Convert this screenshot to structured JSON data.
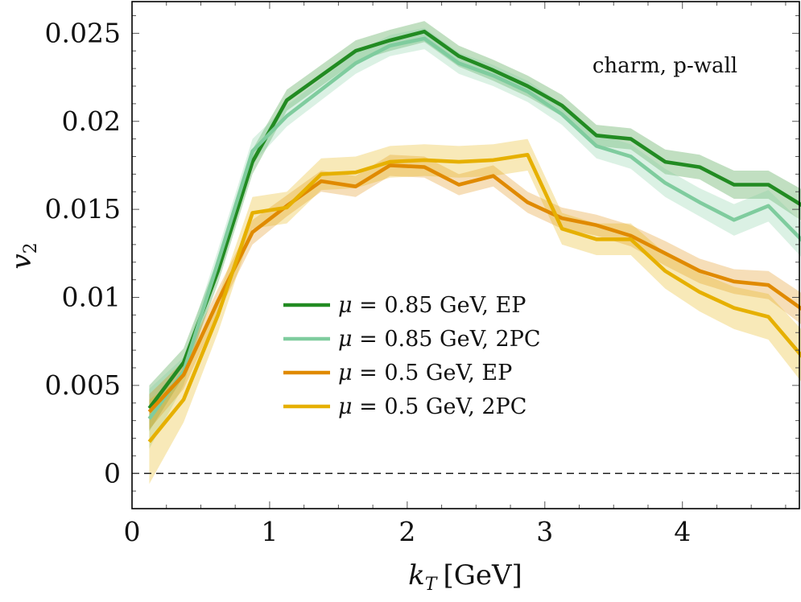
{
  "chart_data": {
    "type": "line",
    "annotation": "charm, p-wall",
    "xlabel": "k_T [GeV]",
    "xlabel_parts": {
      "symbol": "k",
      "subscript": "T",
      "unit": "[GeV]"
    },
    "ylabel": "v_2",
    "ylabel_parts": {
      "symbol": "v",
      "subscript": "2"
    },
    "xlim": [
      0,
      4.85
    ],
    "ylim": [
      -0.002,
      0.0268
    ],
    "x_ticks": [
      0,
      1,
      2,
      3,
      4
    ],
    "x_tick_labels": [
      "0",
      "1",
      "2",
      "3",
      "4"
    ],
    "y_ticks": [
      0,
      0.005,
      0.01,
      0.015,
      0.02,
      0.025
    ],
    "y_tick_labels": [
      "0",
      "0.005",
      "0.01",
      "0.015",
      "0.02",
      "0.025"
    ],
    "reference_line": {
      "y": 0,
      "style": "dashed"
    },
    "grid": false,
    "legend_placement": "center",
    "x": [
      0.125,
      0.375,
      0.625,
      0.875,
      1.125,
      1.375,
      1.625,
      1.875,
      2.125,
      2.375,
      2.625,
      2.875,
      3.125,
      3.375,
      3.625,
      3.875,
      4.125,
      4.375,
      4.625,
      4.875
    ],
    "series": [
      {
        "name": "μ = 0.85 GeV, EP",
        "legend_parts": {
          "symbol": "μ",
          "rest": " = 0.85 GeV, EP"
        },
        "color": "#228B22",
        "band_color": "#228B22",
        "values": [
          0.0037,
          0.0063,
          0.0115,
          0.0177,
          0.0212,
          0.0226,
          0.024,
          0.0246,
          0.0251,
          0.0237,
          0.0229,
          0.022,
          0.0209,
          0.0192,
          0.019,
          0.0177,
          0.0174,
          0.0164,
          0.0164,
          0.0152
        ],
        "band": [
          0.0013,
          0.0008,
          0.0007,
          0.0007,
          0.0006,
          0.0006,
          0.0006,
          0.0006,
          0.0006,
          0.0006,
          0.0006,
          0.0006,
          0.0006,
          0.0006,
          0.0006,
          0.0007,
          0.0007,
          0.0008,
          0.0008,
          0.0009
        ]
      },
      {
        "name": "μ = 0.85 GeV, 2PC",
        "legend_parts": {
          "symbol": "μ",
          "rest": " = 0.85 GeV, 2PC"
        },
        "color": "#7FCC9E",
        "band_color": "#7FCC9E",
        "values": [
          0.0031,
          0.0058,
          0.012,
          0.0183,
          0.0203,
          0.0218,
          0.0233,
          0.0243,
          0.0247,
          0.0233,
          0.0226,
          0.0217,
          0.0204,
          0.0186,
          0.018,
          0.0165,
          0.0154,
          0.0144,
          0.0152,
          0.0132
        ],
        "band": [
          0.0017,
          0.0008,
          0.0007,
          0.0007,
          0.0006,
          0.0006,
          0.0006,
          0.0006,
          0.0006,
          0.0006,
          0.0006,
          0.0006,
          0.0006,
          0.0007,
          0.0007,
          0.0008,
          0.0008,
          0.0009,
          0.0009,
          0.001
        ]
      },
      {
        "name": "μ = 0.5 GeV, EP",
        "legend_parts": {
          "symbol": "μ",
          "rest": " = 0.5 GeV, EP"
        },
        "color": "#E08A00",
        "band_color": "#E08A00",
        "values": [
          0.0035,
          0.0056,
          0.0098,
          0.0137,
          0.0152,
          0.0166,
          0.0163,
          0.0175,
          0.0174,
          0.0164,
          0.0169,
          0.0154,
          0.0145,
          0.0141,
          0.0135,
          0.0125,
          0.0115,
          0.0109,
          0.0107,
          0.0093
        ],
        "band": [
          0.001,
          0.0008,
          0.0007,
          0.0007,
          0.0006,
          0.0006,
          0.0006,
          0.0006,
          0.0006,
          0.0006,
          0.0006,
          0.0006,
          0.0006,
          0.0006,
          0.0006,
          0.0007,
          0.0007,
          0.0007,
          0.0008,
          0.0009
        ]
      },
      {
        "name": "μ = 0.5 GeV, 2PC",
        "legend_parts": {
          "symbol": "μ",
          "rest": " = 0.5 GeV, 2PC"
        },
        "color": "#E6B000",
        "band_color": "#E6B000",
        "values": [
          0.0018,
          0.0042,
          0.009,
          0.0148,
          0.0151,
          0.017,
          0.0171,
          0.0177,
          0.0178,
          0.0177,
          0.0178,
          0.0181,
          0.0139,
          0.0133,
          0.0133,
          0.0115,
          0.0103,
          0.0094,
          0.0089,
          0.0066
        ],
        "band": [
          0.0024,
          0.0013,
          0.001,
          0.0009,
          0.0009,
          0.0009,
          0.0009,
          0.0009,
          0.0009,
          0.0009,
          0.0009,
          0.0009,
          0.0009,
          0.0009,
          0.0009,
          0.001,
          0.0011,
          0.0012,
          0.0013,
          0.0015
        ]
      }
    ]
  }
}
